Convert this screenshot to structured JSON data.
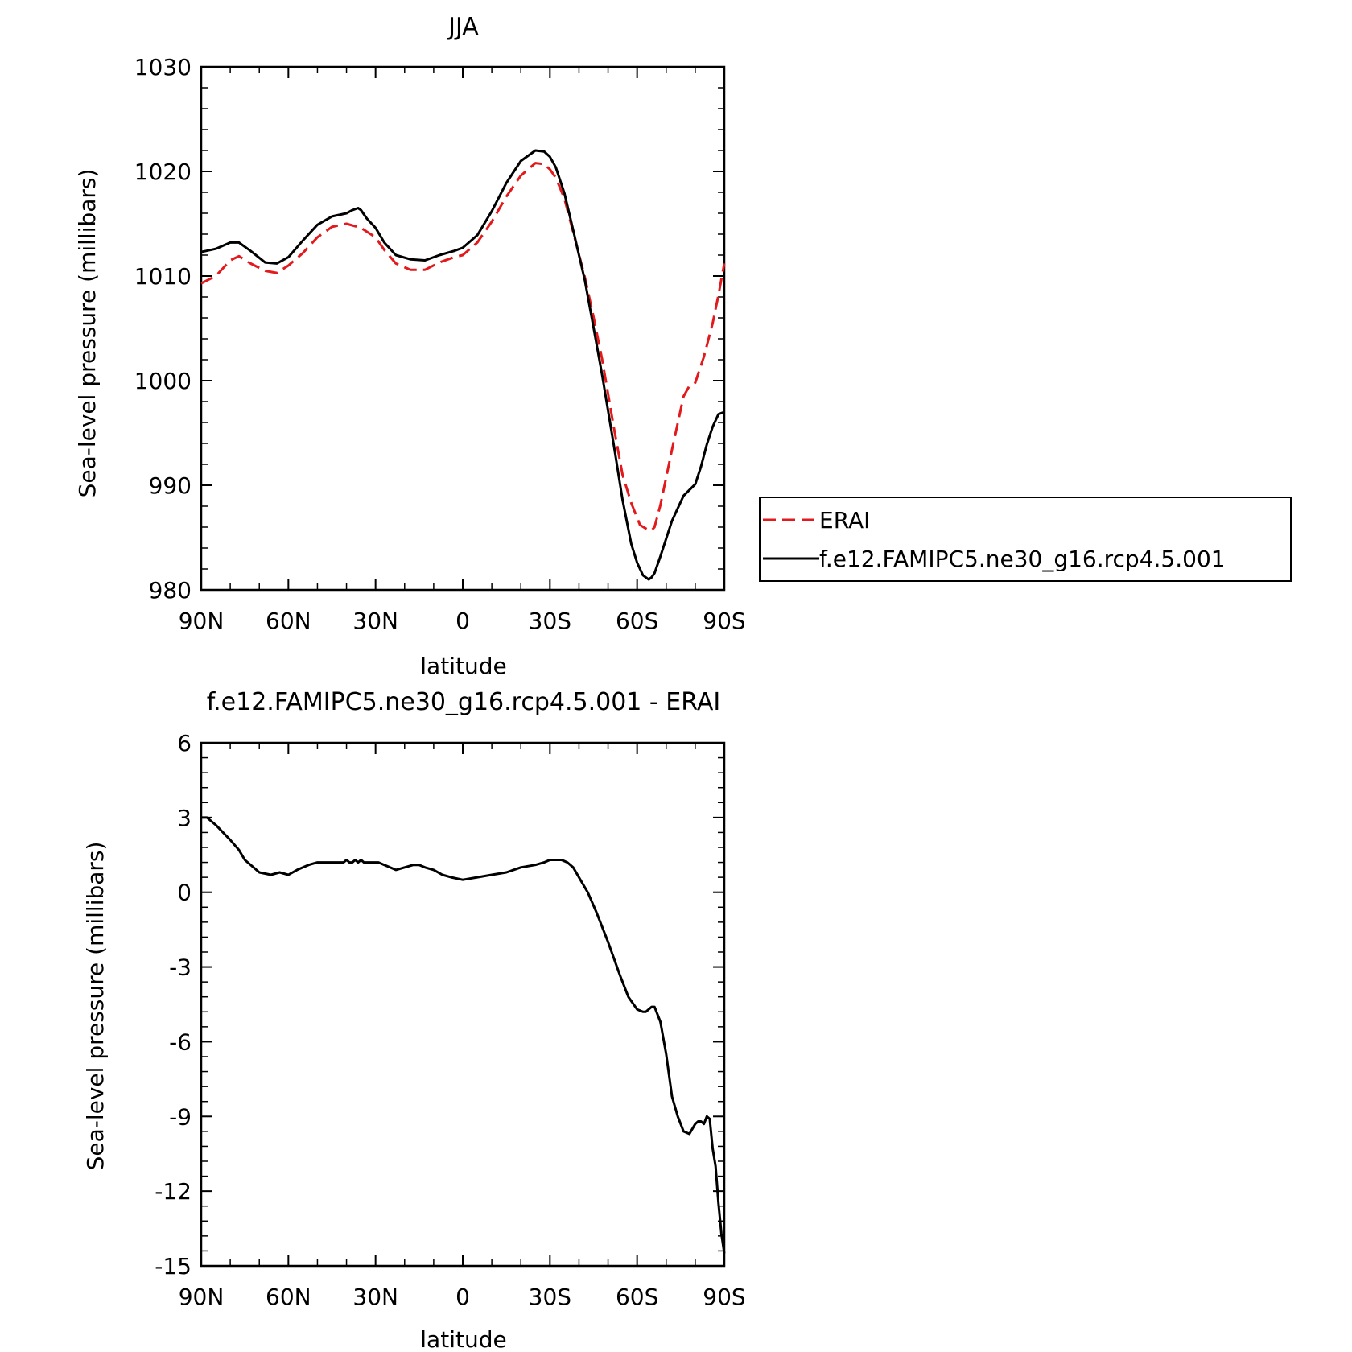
{
  "chart_data": [
    {
      "type": "line",
      "title": "JJA",
      "xlabel": "latitude",
      "ylabel": "Sea-level pressure (millibars)",
      "x_ticks": [
        "90N",
        "60N",
        "30N",
        "0",
        "30S",
        "60S",
        "90S"
      ],
      "x_tick_values": [
        90,
        60,
        30,
        0,
        -30,
        -60,
        -90
      ],
      "xlim": [
        90,
        -90
      ],
      "y_ticks": [
        "980",
        "990",
        "1000",
        "1010",
        "1020",
        "1030"
      ],
      "y_tick_values": [
        980,
        990,
        1000,
        1010,
        1020,
        1030
      ],
      "ylim": [
        980,
        1030
      ],
      "legend": {
        "placement": "right-outside"
      },
      "series": [
        {
          "name": "ERAI",
          "color": "#e31a1c",
          "dash": "dashed",
          "x": [
            90,
            85,
            80,
            77,
            73,
            68,
            64,
            60,
            55,
            50,
            45,
            40,
            35,
            30,
            27,
            23,
            18,
            13,
            8,
            3,
            0,
            -5,
            -10,
            -15,
            -20,
            -25,
            -28,
            -30,
            -32,
            -35,
            -38,
            -42,
            -45,
            -48,
            -52,
            -55,
            -58,
            -61,
            -64,
            -65,
            -66,
            -68,
            -72,
            -76,
            -78,
            -80,
            -83,
            -86,
            -88,
            -90
          ],
          "y": [
            1009.3,
            1010.0,
            1011.5,
            1011.9,
            1011.2,
            1010.5,
            1010.3,
            1011.0,
            1012.2,
            1013.7,
            1014.7,
            1015.0,
            1014.6,
            1013.7,
            1012.5,
            1011.2,
            1010.6,
            1010.6,
            1011.3,
            1011.8,
            1012.0,
            1013.2,
            1015.2,
            1017.6,
            1019.6,
            1020.8,
            1020.7,
            1020.2,
            1019.4,
            1017.4,
            1014.2,
            1009.9,
            1006.1,
            1002.0,
            995.5,
            991.0,
            988.3,
            986.2,
            985.7,
            985.7,
            986.0,
            988.1,
            993.4,
            998.5,
            999.5,
            999.8,
            1002.3,
            1005.5,
            1008.2,
            1011.2
          ]
        },
        {
          "name": "f.e12.FAMIPC5.ne30_g16.rcp4.5.001",
          "color": "#000000",
          "dash": "solid",
          "x": [
            90,
            85,
            80,
            77,
            73,
            68,
            64,
            60,
            55,
            50,
            45,
            40,
            38,
            36,
            35,
            33,
            30,
            27,
            23,
            18,
            13,
            8,
            3,
            0,
            -5,
            -10,
            -15,
            -20,
            -25,
            -28,
            -30,
            -32,
            -35,
            -38,
            -42,
            -45,
            -48,
            -52,
            -55,
            -58,
            -60,
            -62,
            -64,
            -65,
            -66,
            -68,
            -72,
            -76,
            -80,
            -82,
            -84,
            -86,
            -88,
            -90
          ],
          "y": [
            1012.3,
            1012.6,
            1013.2,
            1013.2,
            1012.4,
            1011.3,
            1011.2,
            1011.8,
            1013.4,
            1014.9,
            1015.7,
            1016.0,
            1016.3,
            1016.5,
            1016.3,
            1015.5,
            1014.6,
            1013.2,
            1012.0,
            1011.6,
            1011.5,
            1012.0,
            1012.4,
            1012.7,
            1013.9,
            1016.2,
            1018.9,
            1021.0,
            1022.0,
            1021.9,
            1021.4,
            1020.4,
            1017.9,
            1014.4,
            1009.6,
            1005.1,
            1000.5,
            993.8,
            988.6,
            984.4,
            982.6,
            981.4,
            981.0,
            981.2,
            981.6,
            983.2,
            986.6,
            989.0,
            990.1,
            991.8,
            993.9,
            995.6,
            996.8,
            997.0
          ]
        }
      ]
    },
    {
      "type": "line",
      "title": "f.e12.FAMIPC5.ne30_g16.rcp4.5.001 - ERAI",
      "xlabel": "latitude",
      "ylabel": "Sea-level pressure (millibars)",
      "x_ticks": [
        "90N",
        "60N",
        "30N",
        "0",
        "30S",
        "60S",
        "90S"
      ],
      "x_tick_values": [
        90,
        60,
        30,
        0,
        -30,
        -60,
        -90
      ],
      "xlim": [
        90,
        -90
      ],
      "y_ticks": [
        "-15",
        "-12",
        "-9",
        "-6",
        "-3",
        "0",
        "3",
        "6"
      ],
      "y_tick_values": [
        -15,
        -12,
        -9,
        -6,
        -3,
        0,
        3,
        6
      ],
      "ylim": [
        -15,
        6
      ],
      "series": [
        {
          "color": "#000000",
          "dash": "solid",
          "x": [
            90,
            88,
            85,
            80,
            77,
            75,
            72,
            70,
            66,
            63,
            60,
            57,
            53,
            50,
            46,
            43,
            41,
            40,
            39,
            38,
            37,
            36,
            35,
            34,
            33,
            31,
            29,
            27,
            25,
            23,
            20,
            17,
            15,
            13,
            10,
            7,
            4,
            0,
            -5,
            -10,
            -15,
            -20,
            -25,
            -28,
            -30,
            -32,
            -34,
            -36,
            -38,
            -40,
            -43,
            -46,
            -50,
            -54,
            -57,
            -60,
            -62,
            -63,
            -65,
            -66,
            -68,
            -70,
            -72,
            -74,
            -76,
            -78,
            -79,
            -80,
            -81,
            -82,
            -83,
            -84,
            -85,
            -86,
            -87,
            -88,
            -89,
            -90
          ],
          "y": [
            3.0,
            3.0,
            2.7,
            2.1,
            1.7,
            1.3,
            1.0,
            0.8,
            0.7,
            0.8,
            0.7,
            0.9,
            1.1,
            1.2,
            1.2,
            1.2,
            1.2,
            1.3,
            1.2,
            1.2,
            1.3,
            1.2,
            1.3,
            1.2,
            1.2,
            1.2,
            1.2,
            1.1,
            1.0,
            0.9,
            1.0,
            1.1,
            1.1,
            1.0,
            0.9,
            0.7,
            0.6,
            0.5,
            0.6,
            0.7,
            0.8,
            1.0,
            1.1,
            1.2,
            1.3,
            1.3,
            1.3,
            1.2,
            1.0,
            0.6,
            0.0,
            -0.8,
            -2.0,
            -3.3,
            -4.2,
            -4.7,
            -4.8,
            -4.8,
            -4.6,
            -4.6,
            -5.2,
            -6.5,
            -8.2,
            -9.0,
            -9.6,
            -9.7,
            -9.5,
            -9.3,
            -9.2,
            -9.2,
            -9.3,
            -9.0,
            -9.1,
            -10.3,
            -11.0,
            -12.5,
            -13.7,
            -14.5
          ]
        }
      ]
    }
  ]
}
